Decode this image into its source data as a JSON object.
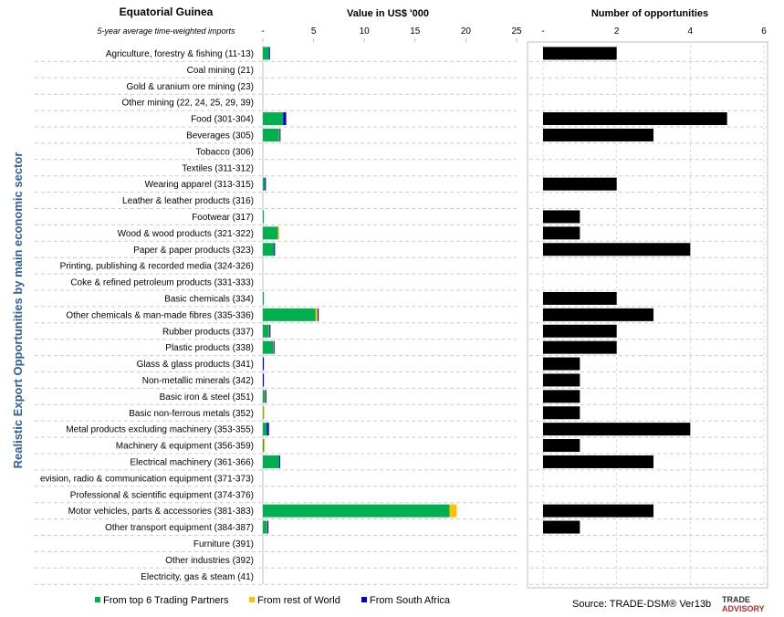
{
  "chart_data": {
    "type": "bar",
    "title": "Equatorial Guinea",
    "subtitle": "5-year average time-weighted imports",
    "ylabel": "Realistic Export Opportunities by main economic sector",
    "value_panel": {
      "header": "Value in US$ '000",
      "xlim": [
        0,
        25
      ],
      "ticks": [
        "-",
        "5",
        "10",
        "15",
        "20",
        "25"
      ]
    },
    "count_panel": {
      "header": "Number of opportunities",
      "xlim": [
        0,
        6
      ],
      "ticks": [
        "-",
        "2",
        "4",
        "6"
      ],
      "color": "#000000"
    },
    "categories": [
      "Agriculture, forestry & fishing (11-13)",
      "Coal mining (21)",
      "Gold & uranium ore mining (23)",
      "Other mining (22, 24, 25, 29, 39)",
      "Food (301-304)",
      "Beverages (305)",
      "Tobacco (306)",
      "Textiles (311-312)",
      "Wearing apparel (313-315)",
      "Leather & leather products (316)",
      "Footwear (317)",
      "Wood & wood products (321-322)",
      "Paper & paper products (323)",
      "Printing, publishing & recorded media (324-326)",
      "Coke & refined petroleum products (331-333)",
      "Basic chemicals (334)",
      "Other chemicals & man-made fibres (335-336)",
      "Rubber products (337)",
      "Plastic products (338)",
      "Glass & glass products (341)",
      "Non-metallic minerals (342)",
      "Basic iron & steel (351)",
      "Basic non-ferrous metals (352)",
      "Metal products excluding machinery (353-355)",
      "Machinery & equipment (356-359)",
      "Electrical machinery (361-366)",
      "evision, radio & communication equipment (371-373)",
      "Professional & scientific equipment (374-376)",
      "Motor vehicles, parts & accessories (381-383)",
      "Other transport equipment (384-387)",
      "Furniture (391)",
      "Other industries (392)",
      "Electricity, gas & steam (41)"
    ],
    "series": [
      {
        "name": "From top 6 Trading Partners",
        "color": "#00b050",
        "values": [
          0.6,
          0,
          0,
          0,
          2.0,
          1.6,
          0,
          0,
          0.2,
          0,
          0.1,
          1.5,
          1.1,
          0,
          0,
          0.1,
          5.2,
          0.6,
          1.0,
          0,
          0,
          0.2,
          0.05,
          0.4,
          0.1,
          1.6,
          0,
          0,
          18.4,
          0.4,
          0,
          0,
          0
        ]
      },
      {
        "name": "From rest of World",
        "color": "#ffc000",
        "values": [
          0,
          0,
          0,
          0,
          0,
          0.05,
          0,
          0,
          0,
          0,
          0,
          0.1,
          0,
          0,
          0,
          0,
          0.2,
          0.05,
          0.05,
          0,
          0,
          0.05,
          0.1,
          0,
          0.1,
          0,
          0,
          0,
          0.7,
          0.05,
          0,
          0,
          0
        ]
      },
      {
        "name": "From South Africa",
        "color": "#0000cc",
        "values": [
          0.1,
          0,
          0,
          0,
          0.3,
          0.05,
          0,
          0,
          0.1,
          0,
          0,
          0,
          0.1,
          0,
          0,
          0,
          0.1,
          0.1,
          0.1,
          0.1,
          0.1,
          0.1,
          0,
          0.2,
          0,
          0.1,
          0,
          0,
          0,
          0.1,
          0,
          0,
          0
        ]
      }
    ],
    "opportunities": [
      2,
      0,
      0,
      0,
      5,
      3,
      0,
      0,
      2,
      0,
      1,
      1,
      4,
      0,
      0,
      2,
      3,
      2,
      2,
      1,
      1,
      1,
      1,
      4,
      1,
      3,
      0,
      0,
      3,
      1,
      0,
      0,
      0
    ]
  },
  "footer": {
    "source": "Source: TRADE-DSM®  Ver13b",
    "logo_top": "TRADE",
    "logo_bottom": "ADVISORY"
  }
}
